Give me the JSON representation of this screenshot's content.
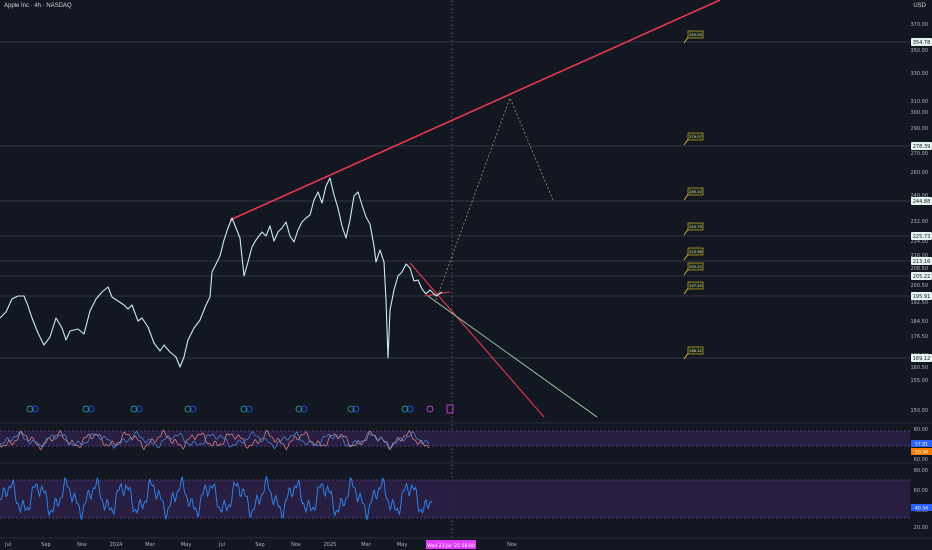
{
  "header": {
    "title": "Apple Inc · 4h · NASDAQ",
    "currency": "USD"
  },
  "chart_data": {
    "type": "line",
    "colors": {
      "background": "#131722",
      "price": "#c9ecf2",
      "channel_top": "#e8384f",
      "falling": "#e8384f",
      "green": "#a5d6a7",
      "projection": "#a39070",
      "osc1_a": "#e58a8a",
      "osc1_b": "#4a90e2",
      "osc2": "#2f8af5",
      "band": "#2a1f45"
    },
    "price_axis_ticks": [
      "370.00",
      "350.00",
      "330.00",
      "310.00",
      "300.00",
      "290.00",
      "270.00",
      "260.00",
      "240.00",
      "232.00",
      "224.00",
      "216.00",
      "208.50",
      "200.50",
      "192.50",
      "184.50",
      "176.50",
      "166.50",
      "160.50",
      "155.00",
      "150.00"
    ],
    "x_ticks": [
      "Jul",
      "Sep",
      "Nov",
      "2024",
      "Mar",
      "May",
      "Jul",
      "Sep",
      "Nov",
      "2025",
      "Mar",
      "May",
      "Nov"
    ],
    "crosshair_date": "Wed 23 Jul '25   08:00",
    "levels": [
      {
        "label": "354.78",
        "box": "355.00"
      },
      {
        "label": "278.39",
        "box": "279.07"
      },
      {
        "label": "244.88",
        "box": "245.10"
      },
      {
        "label": "225.73",
        "box": "225.79"
      },
      {
        "label": "213.16",
        "box": "213.96"
      },
      {
        "label": "205.22",
        "box": "205.22"
      },
      {
        "label": "195.91",
        "box": "197.20"
      },
      {
        "label": "169.12",
        "box": "168.12"
      }
    ],
    "price_path": [
      [
        0,
        318
      ],
      [
        6,
        312
      ],
      [
        12,
        299
      ],
      [
        18,
        296
      ],
      [
        24,
        296
      ],
      [
        28,
        306
      ],
      [
        32,
        318
      ],
      [
        38,
        333
      ],
      [
        44,
        345
      ],
      [
        50,
        337
      ],
      [
        56,
        318
      ],
      [
        62,
        328
      ],
      [
        66,
        340
      ],
      [
        70,
        331
      ],
      [
        78,
        329
      ],
      [
        84,
        334
      ],
      [
        90,
        311
      ],
      [
        96,
        299
      ],
      [
        102,
        292
      ],
      [
        108,
        287
      ],
      [
        112,
        297
      ],
      [
        118,
        301
      ],
      [
        124,
        305
      ],
      [
        128,
        309
      ],
      [
        132,
        305
      ],
      [
        138,
        321
      ],
      [
        142,
        318
      ],
      [
        148,
        327
      ],
      [
        154,
        343
      ],
      [
        160,
        351
      ],
      [
        164,
        345
      ],
      [
        170,
        352
      ],
      [
        176,
        357
      ],
      [
        180,
        367
      ],
      [
        184,
        357
      ],
      [
        188,
        340
      ],
      [
        194,
        328
      ],
      [
        200,
        320
      ],
      [
        206,
        305
      ],
      [
        210,
        297
      ],
      [
        212,
        272
      ],
      [
        216,
        264
      ],
      [
        220,
        256
      ],
      [
        224,
        240
      ],
      [
        228,
        228
      ],
      [
        232,
        218
      ],
      [
        236,
        228
      ],
      [
        240,
        238
      ],
      [
        244,
        276
      ],
      [
        248,
        262
      ],
      [
        252,
        247
      ],
      [
        256,
        240
      ],
      [
        262,
        232
      ],
      [
        266,
        236
      ],
      [
        270,
        226
      ],
      [
        274,
        241
      ],
      [
        278,
        232
      ],
      [
        282,
        228
      ],
      [
        286,
        222
      ],
      [
        290,
        236
      ],
      [
        294,
        242
      ],
      [
        298,
        230
      ],
      [
        302,
        222
      ],
      [
        306,
        218
      ],
      [
        310,
        215
      ],
      [
        314,
        200
      ],
      [
        318,
        192
      ],
      [
        322,
        203
      ],
      [
        326,
        186
      ],
      [
        330,
        178
      ],
      [
        334,
        195
      ],
      [
        338,
        208
      ],
      [
        342,
        226
      ],
      [
        346,
        238
      ],
      [
        350,
        220
      ],
      [
        354,
        196
      ],
      [
        358,
        192
      ],
      [
        362,
        205
      ],
      [
        366,
        217
      ],
      [
        370,
        224
      ],
      [
        374,
        246
      ],
      [
        376,
        262
      ],
      [
        380,
        250
      ],
      [
        384,
        262
      ],
      [
        386,
        300
      ],
      [
        388,
        358
      ],
      [
        390,
        310
      ],
      [
        394,
        290
      ],
      [
        398,
        276
      ],
      [
        402,
        272
      ],
      [
        406,
        264
      ],
      [
        410,
        268
      ],
      [
        414,
        281
      ],
      [
        418,
        280
      ],
      [
        422,
        289
      ],
      [
        426,
        294
      ],
      [
        430,
        290
      ],
      [
        436,
        296
      ],
      [
        442,
        292
      ]
    ],
    "red_channel": [
      [
        230,
        220
      ],
      [
        720,
        0
      ]
    ],
    "red_falling": [
      [
        410,
        263
      ],
      [
        544,
        417
      ]
    ],
    "green_line": [
      [
        428,
        296
      ],
      [
        597,
        417
      ]
    ],
    "small_red": [
      [
        425,
        296
      ],
      [
        450,
        292
      ]
    ],
    "projection_path": [
      [
        436,
        300
      ],
      [
        510,
        98
      ],
      [
        553,
        200
      ]
    ],
    "osc1_range": [
      80,
      60
    ],
    "osc2_range": [
      80,
      30
    ],
    "osc1_axis": [
      "80.00",
      "60.00"
    ],
    "osc2_axis": [
      "80.00",
      "60.00",
      "40.00",
      "20.00"
    ],
    "osc1_marks": [
      "57.81",
      "50.34"
    ],
    "osc2_marks": [
      "40.34"
    ]
  }
}
